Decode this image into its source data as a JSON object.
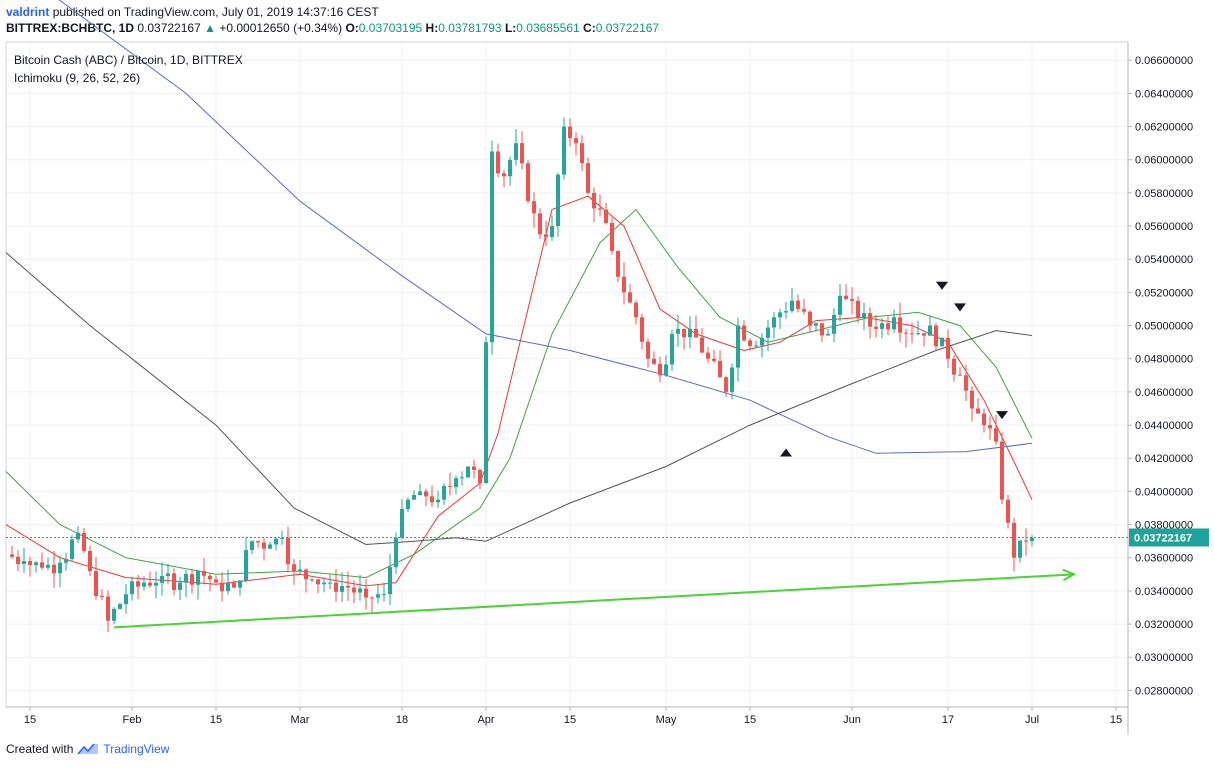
{
  "header": {
    "author": "valdrint",
    "published_text": "published on TradingView.com, July 01, 2019 14:37:16 CEST",
    "symbol": "BITTREX:BCHBTC, 1D",
    "last": "0.03722167",
    "change_arrow": "▲",
    "change": "+0.00012650 (+0.34%)",
    "o_label": "O:",
    "o_value": "0.03703195",
    "h_label": "H:",
    "h_value": "0.03781793",
    "l_label": "L:",
    "l_value": "0.03685561",
    "c_label": "C:",
    "c_value": "0.03722167"
  },
  "footer": {
    "created_with": "Created with",
    "brand": "TradingView",
    "logo_icon": "tradingview-logo-icon"
  },
  "colors": {
    "up": "#26a69a",
    "down": "#ef5350",
    "ma_fast": "#e53935",
    "ma_mid": "#43a047",
    "ma_slow": "#5c6bc0",
    "ma_long": "#555555",
    "trendline": "#4cd137",
    "price_tag": "#1ea39a",
    "grid": "#eef0f3"
  },
  "chart_data": {
    "type": "candlestick",
    "title": "Bitcoin Cash (ABC) / Bitcoin, 1D, BITTREX",
    "indicator_label": "Ichimoku (9, 26, 52, 26)",
    "y_axis": {
      "ylim": [
        0.027,
        0.0671
      ],
      "ticks": [
        "0.06600000",
        "0.06400000",
        "0.06200000",
        "0.06000000",
        "0.05800000",
        "0.05600000",
        "0.05400000",
        "0.05200000",
        "0.05000000",
        "0.04800000",
        "0.04600000",
        "0.04400000",
        "0.04200000",
        "0.04000000",
        "0.03800000",
        "0.03600000",
        "0.03400000",
        "0.03200000",
        "0.03000000",
        "0.02800000"
      ],
      "current_price_label": "0.03722167",
      "current_price": 0.03722167
    },
    "x_axis": {
      "start_date": "2019-01-11",
      "end_date": "2019-07-17",
      "ticks": [
        {
          "date": "2019-01-15",
          "label": "15"
        },
        {
          "date": "2019-02-01",
          "label": "Feb"
        },
        {
          "date": "2019-02-15",
          "label": "15"
        },
        {
          "date": "2019-03-01",
          "label": "Mar"
        },
        {
          "date": "2019-03-18",
          "label": "18"
        },
        {
          "date": "2019-04-01",
          "label": "Apr"
        },
        {
          "date": "2019-04-15",
          "label": "15"
        },
        {
          "date": "2019-05-01",
          "label": "May"
        },
        {
          "date": "2019-05-15",
          "label": "15"
        },
        {
          "date": "2019-06-01",
          "label": "Jun"
        },
        {
          "date": "2019-06-17",
          "label": "17"
        },
        {
          "date": "2019-07-01",
          "label": "Jul"
        },
        {
          "date": "2019-07-15",
          "label": "15"
        }
      ]
    },
    "closes": [
      {
        "date": "2019-01-11",
        "close": 0.0362
      },
      {
        "date": "2019-01-14",
        "close": 0.0358
      },
      {
        "date": "2019-01-17",
        "close": 0.0354
      },
      {
        "date": "2019-01-20",
        "close": 0.0357
      },
      {
        "date": "2019-01-23",
        "close": 0.0375
      },
      {
        "date": "2019-01-25",
        "close": 0.0352
      },
      {
        "date": "2019-01-28",
        "close": 0.0322
      },
      {
        "date": "2019-01-31",
        "close": 0.0338
      },
      {
        "date": "2019-02-03",
        "close": 0.0345
      },
      {
        "date": "2019-02-06",
        "close": 0.0349
      },
      {
        "date": "2019-02-09",
        "close": 0.0345
      },
      {
        "date": "2019-02-12",
        "close": 0.0352
      },
      {
        "date": "2019-02-15",
        "close": 0.0345
      },
      {
        "date": "2019-02-18",
        "close": 0.0342
      },
      {
        "date": "2019-02-21",
        "close": 0.037
      },
      {
        "date": "2019-02-24",
        "close": 0.0368
      },
      {
        "date": "2019-02-26",
        "close": 0.0372
      },
      {
        "date": "2019-02-28",
        "close": 0.0352
      },
      {
        "date": "2019-03-03",
        "close": 0.0347
      },
      {
        "date": "2019-03-06",
        "close": 0.0345
      },
      {
        "date": "2019-03-09",
        "close": 0.0342
      },
      {
        "date": "2019-03-12",
        "close": 0.0336
      },
      {
        "date": "2019-03-15",
        "close": 0.0338
      },
      {
        "date": "2019-03-17",
        "close": 0.0372
      },
      {
        "date": "2019-03-19",
        "close": 0.0395
      },
      {
        "date": "2019-03-21",
        "close": 0.04
      },
      {
        "date": "2019-03-24",
        "close": 0.0395
      },
      {
        "date": "2019-03-27",
        "close": 0.0408
      },
      {
        "date": "2019-03-29",
        "close": 0.0415
      },
      {
        "date": "2019-03-31",
        "close": 0.0405
      },
      {
        "date": "2019-04-01",
        "close": 0.049
      },
      {
        "date": "2019-04-02",
        "close": 0.0605
      },
      {
        "date": "2019-04-04",
        "close": 0.059
      },
      {
        "date": "2019-04-06",
        "close": 0.061
      },
      {
        "date": "2019-04-08",
        "close": 0.0575
      },
      {
        "date": "2019-04-10",
        "close": 0.0555
      },
      {
        "date": "2019-04-12",
        "close": 0.056
      },
      {
        "date": "2019-04-14",
        "close": 0.062
      },
      {
        "date": "2019-04-16",
        "close": 0.061
      },
      {
        "date": "2019-04-18",
        "close": 0.058
      },
      {
        "date": "2019-04-20",
        "close": 0.057
      },
      {
        "date": "2019-04-22",
        "close": 0.0545
      },
      {
        "date": "2019-04-24",
        "close": 0.052
      },
      {
        "date": "2019-04-26",
        "close": 0.0505
      },
      {
        "date": "2019-04-28",
        "close": 0.048
      },
      {
        "date": "2019-04-30",
        "close": 0.047
      },
      {
        "date": "2019-05-02",
        "close": 0.0495
      },
      {
        "date": "2019-05-05",
        "close": 0.0498
      },
      {
        "date": "2019-05-08",
        "close": 0.048
      },
      {
        "date": "2019-05-11",
        "close": 0.046
      },
      {
        "date": "2019-05-13",
        "close": 0.05
      },
      {
        "date": "2019-05-16",
        "close": 0.0488
      },
      {
        "date": "2019-05-19",
        "close": 0.0505
      },
      {
        "date": "2019-05-22",
        "close": 0.0515
      },
      {
        "date": "2019-05-25",
        "close": 0.05
      },
      {
        "date": "2019-05-28",
        "close": 0.0495
      },
      {
        "date": "2019-05-30",
        "close": 0.0518
      },
      {
        "date": "2019-06-02",
        "close": 0.0505
      },
      {
        "date": "2019-06-05",
        "close": 0.0498
      },
      {
        "date": "2019-06-08",
        "close": 0.0505
      },
      {
        "date": "2019-06-11",
        "close": 0.0495
      },
      {
        "date": "2019-06-14",
        "close": 0.05
      },
      {
        "date": "2019-06-17",
        "close": 0.048
      },
      {
        "date": "2019-06-19",
        "close": 0.047
      },
      {
        "date": "2019-06-21",
        "close": 0.045
      },
      {
        "date": "2019-06-23",
        "close": 0.044
      },
      {
        "date": "2019-06-25",
        "close": 0.043
      },
      {
        "date": "2019-06-26",
        "close": 0.0395
      },
      {
        "date": "2019-06-28",
        "close": 0.036
      },
      {
        "date": "2019-06-30",
        "close": 0.037
      },
      {
        "date": "2019-07-01",
        "close": 0.0372
      }
    ],
    "moving_averages": [
      {
        "color_key": "ma_fast",
        "values": [
          {
            "date": "2019-01-11",
            "v": 0.038
          },
          {
            "date": "2019-01-20",
            "v": 0.036
          },
          {
            "date": "2019-01-31",
            "v": 0.0348
          },
          {
            "date": "2019-02-15",
            "v": 0.0344
          },
          {
            "date": "2019-03-01",
            "v": 0.035
          },
          {
            "date": "2019-03-12",
            "v": 0.0343
          },
          {
            "date": "2019-03-17",
            "v": 0.0345
          },
          {
            "date": "2019-03-24",
            "v": 0.0385
          },
          {
            "date": "2019-03-31",
            "v": 0.0405
          },
          {
            "date": "2019-04-03",
            "v": 0.0435
          },
          {
            "date": "2019-04-08",
            "v": 0.051
          },
          {
            "date": "2019-04-12",
            "v": 0.057
          },
          {
            "date": "2019-04-18",
            "v": 0.0578
          },
          {
            "date": "2019-04-24",
            "v": 0.056
          },
          {
            "date": "2019-04-30",
            "v": 0.051
          },
          {
            "date": "2019-05-06",
            "v": 0.0495
          },
          {
            "date": "2019-05-14",
            "v": 0.0485
          },
          {
            "date": "2019-05-20",
            "v": 0.049
          },
          {
            "date": "2019-05-26",
            "v": 0.0503
          },
          {
            "date": "2019-06-03",
            "v": 0.0505
          },
          {
            "date": "2019-06-11",
            "v": 0.05
          },
          {
            "date": "2019-06-17",
            "v": 0.049
          },
          {
            "date": "2019-06-23",
            "v": 0.0455
          },
          {
            "date": "2019-06-28",
            "v": 0.0418
          },
          {
            "date": "2019-07-01",
            "v": 0.0395
          }
        ]
      },
      {
        "color_key": "ma_mid",
        "values": [
          {
            "date": "2019-01-11",
            "v": 0.0412
          },
          {
            "date": "2019-01-20",
            "v": 0.038
          },
          {
            "date": "2019-01-31",
            "v": 0.036
          },
          {
            "date": "2019-02-15",
            "v": 0.035
          },
          {
            "date": "2019-03-01",
            "v": 0.0352
          },
          {
            "date": "2019-03-12",
            "v": 0.0348
          },
          {
            "date": "2019-03-20",
            "v": 0.0362
          },
          {
            "date": "2019-03-31",
            "v": 0.039
          },
          {
            "date": "2019-04-05",
            "v": 0.042
          },
          {
            "date": "2019-04-12",
            "v": 0.0495
          },
          {
            "date": "2019-04-20",
            "v": 0.055
          },
          {
            "date": "2019-04-26",
            "v": 0.057
          },
          {
            "date": "2019-05-03",
            "v": 0.0535
          },
          {
            "date": "2019-05-10",
            "v": 0.0505
          },
          {
            "date": "2019-05-18",
            "v": 0.049
          },
          {
            "date": "2019-05-26",
            "v": 0.0497
          },
          {
            "date": "2019-06-04",
            "v": 0.0505
          },
          {
            "date": "2019-06-12",
            "v": 0.0508
          },
          {
            "date": "2019-06-19",
            "v": 0.05
          },
          {
            "date": "2019-06-25",
            "v": 0.0475
          },
          {
            "date": "2019-07-01",
            "v": 0.0432
          }
        ]
      },
      {
        "color_key": "ma_slow",
        "values": [
          {
            "date": "2019-01-11",
            "v": 0.072
          },
          {
            "date": "2019-02-10",
            "v": 0.064
          },
          {
            "date": "2019-03-01",
            "v": 0.0575
          },
          {
            "date": "2019-03-18",
            "v": 0.053
          },
          {
            "date": "2019-04-01",
            "v": 0.0495
          },
          {
            "date": "2019-04-15",
            "v": 0.0485
          },
          {
            "date": "2019-05-01",
            "v": 0.047
          },
          {
            "date": "2019-05-15",
            "v": 0.0455
          },
          {
            "date": "2019-05-28",
            "v": 0.0433
          },
          {
            "date": "2019-06-05",
            "v": 0.0423
          },
          {
            "date": "2019-06-20",
            "v": 0.0424
          },
          {
            "date": "2019-07-01",
            "v": 0.0429
          }
        ]
      },
      {
        "color_key": "ma_long",
        "values": [
          {
            "date": "2019-01-11",
            "v": 0.0544
          },
          {
            "date": "2019-01-25",
            "v": 0.05
          },
          {
            "date": "2019-02-15",
            "v": 0.044
          },
          {
            "date": "2019-02-28",
            "v": 0.039
          },
          {
            "date": "2019-03-12",
            "v": 0.0368
          },
          {
            "date": "2019-03-20",
            "v": 0.037
          },
          {
            "date": "2019-03-27",
            "v": 0.0372
          },
          {
            "date": "2019-04-01",
            "v": 0.037
          },
          {
            "date": "2019-04-15",
            "v": 0.0393
          },
          {
            "date": "2019-05-01",
            "v": 0.0415
          },
          {
            "date": "2019-05-15",
            "v": 0.044
          },
          {
            "date": "2019-06-01",
            "v": 0.0465
          },
          {
            "date": "2019-06-15",
            "v": 0.0485
          },
          {
            "date": "2019-06-25",
            "v": 0.0497
          },
          {
            "date": "2019-07-01",
            "v": 0.0494
          }
        ]
      }
    ],
    "trendline": [
      {
        "date": "2019-01-29",
        "v": 0.0318
      },
      {
        "date": "2019-07-08",
        "v": 0.035
      }
    ],
    "markers": [
      {
        "date": "2019-05-21",
        "v": 0.04235,
        "dir": "up"
      },
      {
        "date": "2019-06-16",
        "v": 0.0524,
        "dir": "down"
      },
      {
        "date": "2019-06-19",
        "v": 0.0511,
        "dir": "down"
      },
      {
        "date": "2019-06-26",
        "v": 0.0446,
        "dir": "down"
      }
    ]
  }
}
